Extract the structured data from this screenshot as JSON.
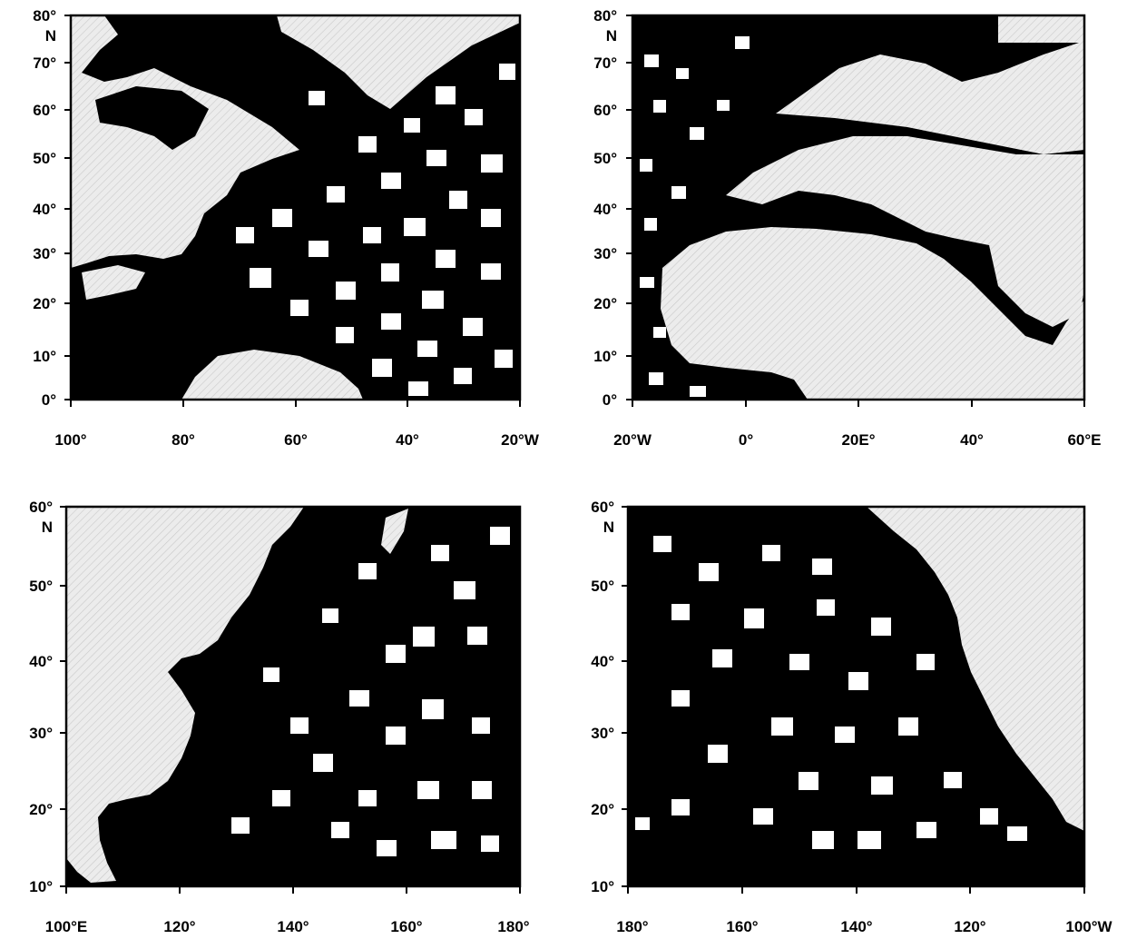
{
  "figure": {
    "panels": [
      {
        "id": "north-atlantic",
        "y_ticks": [
          "80°",
          "70°",
          "60°",
          "50°",
          "40°",
          "30°",
          "20°",
          "10°",
          "0°"
        ],
        "y_unit": "N",
        "x_ticks": [
          "100°",
          "80°",
          "60°",
          "40°",
          "20°W"
        ]
      },
      {
        "id": "europe-africa",
        "y_ticks": [
          "80°",
          "70°",
          "60°",
          "50°",
          "40°",
          "30°",
          "20°",
          "10°",
          "0°"
        ],
        "y_unit": "N",
        "x_ticks": [
          "20°W",
          "0°",
          "20E°",
          "40°",
          "60°E"
        ]
      },
      {
        "id": "west-pacific",
        "y_ticks": [
          "60°",
          "50°",
          "40°",
          "30°",
          "20°",
          "10°"
        ],
        "y_unit": "N",
        "x_ticks": [
          "100°E",
          "120°",
          "140°",
          "160°",
          "180°"
        ]
      },
      {
        "id": "east-pacific",
        "y_ticks": [
          "60°",
          "50°",
          "40°",
          "30°",
          "20°",
          "10°"
        ],
        "y_unit": "N",
        "x_ticks": [
          "180°",
          "160°",
          "140°",
          "120°",
          "100°W"
        ]
      }
    ],
    "colors": {
      "ocean_data": "#000000",
      "land": "#e9e9e9",
      "frame": "#000000"
    }
  }
}
